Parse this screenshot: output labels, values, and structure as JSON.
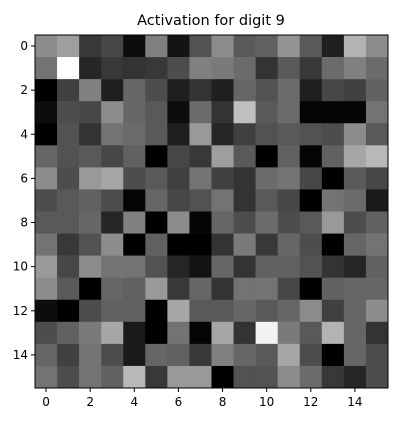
{
  "chart_data": {
    "type": "heatmap",
    "title": "Activation for digit 9",
    "xlabel": "",
    "ylabel": "",
    "colormap": "gray",
    "value_range": [
      0,
      1
    ],
    "rows": 16,
    "cols": 16,
    "x_ticks": [
      "0",
      "2",
      "4",
      "6",
      "8",
      "10",
      "12",
      "14"
    ],
    "y_ticks": [
      "0",
      "2",
      "4",
      "6",
      "8",
      "10",
      "12",
      "14"
    ],
    "grid": false,
    "values": [
      [
        0.55,
        0.62,
        0.22,
        0.28,
        0.05,
        0.5,
        0.08,
        0.32,
        0.55,
        0.35,
        0.38,
        0.58,
        0.35,
        0.12,
        0.7,
        0.55
      ],
      [
        0.45,
        1.0,
        0.15,
        0.22,
        0.2,
        0.22,
        0.3,
        0.5,
        0.48,
        0.42,
        0.2,
        0.35,
        0.22,
        0.42,
        0.5,
        0.42
      ],
      [
        0.0,
        0.25,
        0.5,
        0.12,
        0.4,
        0.3,
        0.12,
        0.2,
        0.12,
        0.4,
        0.32,
        0.42,
        0.12,
        0.28,
        0.25,
        0.38
      ],
      [
        0.05,
        0.3,
        0.28,
        0.55,
        0.4,
        0.35,
        0.05,
        0.42,
        0.2,
        0.75,
        0.35,
        0.42,
        0.02,
        0.02,
        0.02,
        0.45
      ],
      [
        0.0,
        0.32,
        0.2,
        0.45,
        0.42,
        0.35,
        0.12,
        0.6,
        0.15,
        0.25,
        0.32,
        0.35,
        0.32,
        0.3,
        0.55,
        0.35
      ],
      [
        0.4,
        0.32,
        0.35,
        0.28,
        0.38,
        0.0,
        0.28,
        0.22,
        0.62,
        0.35,
        0.0,
        0.38,
        0.02,
        0.38,
        0.65,
        0.72
      ],
      [
        0.55,
        0.3,
        0.6,
        0.65,
        0.3,
        0.35,
        0.25,
        0.45,
        0.25,
        0.2,
        0.42,
        0.45,
        0.28,
        0.0,
        0.35,
        0.28
      ],
      [
        0.3,
        0.35,
        0.38,
        0.3,
        0.02,
        0.4,
        0.28,
        0.32,
        0.45,
        0.2,
        0.35,
        0.28,
        0.0,
        0.45,
        0.42,
        0.1
      ],
      [
        0.35,
        0.35,
        0.4,
        0.15,
        0.5,
        0.0,
        0.55,
        0.02,
        0.4,
        0.3,
        0.42,
        0.3,
        0.35,
        0.6,
        0.3,
        0.38
      ],
      [
        0.45,
        0.22,
        0.32,
        0.55,
        0.0,
        0.38,
        0.0,
        0.0,
        0.2,
        0.48,
        0.22,
        0.4,
        0.3,
        0.0,
        0.4,
        0.45
      ],
      [
        0.6,
        0.28,
        0.55,
        0.45,
        0.45,
        0.32,
        0.15,
        0.08,
        0.4,
        0.2,
        0.38,
        0.38,
        0.32,
        0.2,
        0.15,
        0.38
      ],
      [
        0.55,
        0.35,
        0.0,
        0.4,
        0.38,
        0.6,
        0.22,
        0.4,
        0.2,
        0.45,
        0.45,
        0.28,
        0.0,
        0.38,
        0.4,
        0.4
      ],
      [
        0.05,
        0.0,
        0.3,
        0.38,
        0.38,
        0.0,
        0.65,
        0.35,
        0.35,
        0.4,
        0.35,
        0.4,
        0.55,
        0.25,
        0.4,
        0.55
      ],
      [
        0.3,
        0.38,
        0.48,
        0.65,
        0.1,
        0.0,
        0.45,
        0.02,
        0.65,
        0.2,
        0.95,
        0.48,
        0.35,
        0.7,
        0.4,
        0.2
      ],
      [
        0.4,
        0.25,
        0.45,
        0.3,
        0.1,
        0.4,
        0.38,
        0.22,
        0.5,
        0.4,
        0.35,
        0.65,
        0.3,
        0.0,
        0.4,
        0.3
      ],
      [
        0.45,
        0.3,
        0.45,
        0.38,
        0.72,
        0.22,
        0.6,
        0.6,
        0.0,
        0.32,
        0.32,
        0.55,
        0.42,
        0.22,
        0.15,
        0.3
      ]
    ]
  }
}
